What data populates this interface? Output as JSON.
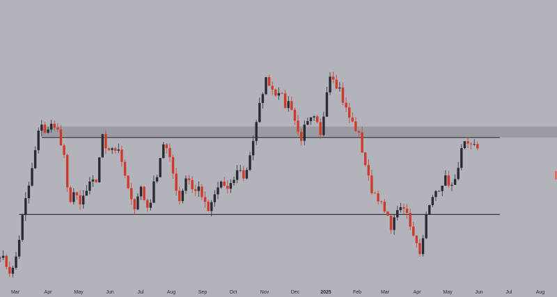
{
  "chart_data": {
    "type": "candlestick",
    "x_ticks": [
      "Mar",
      "Apr",
      "May",
      "Jun",
      "Jul",
      "Aug",
      "Sep",
      "Oct",
      "Nov",
      "Dec",
      "2025",
      "Feb",
      "Mar",
      "Apr",
      "May",
      "Jun",
      "Jul",
      "Aug"
    ],
    "x_ticks_bold": [
      10
    ],
    "y_axis_visible": false,
    "grid": false,
    "levels": {
      "resistance": 0.55,
      "support": 0.27,
      "supply_zone": [
        0.55,
        0.59
      ]
    },
    "close_path": [
      [
        0.0,
        0.13
      ],
      [
        0.5,
        0.1
      ],
      [
        1.0,
        0.08
      ],
      [
        1.5,
        0.05
      ],
      [
        2.0,
        0.1
      ],
      [
        2.5,
        0.18
      ],
      [
        3.0,
        0.27
      ],
      [
        3.5,
        0.34
      ],
      [
        4.0,
        0.4
      ],
      [
        4.5,
        0.48
      ],
      [
        5.0,
        0.56
      ],
      [
        5.5,
        0.61
      ],
      [
        6.0,
        0.56
      ],
      [
        6.5,
        0.58
      ],
      [
        7.0,
        0.61
      ],
      [
        7.5,
        0.58
      ],
      [
        8.0,
        0.52
      ],
      [
        8.5,
        0.46
      ],
      [
        9.0,
        0.3
      ],
      [
        9.5,
        0.36
      ],
      [
        10.0,
        0.33
      ],
      [
        10.5,
        0.3
      ],
      [
        11.0,
        0.34
      ],
      [
        11.5,
        0.36
      ],
      [
        12.0,
        0.39
      ],
      [
        12.5,
        0.37
      ],
      [
        13.0,
        0.48
      ],
      [
        13.5,
        0.56
      ],
      [
        14.0,
        0.5
      ],
      [
        14.5,
        0.53
      ],
      [
        15.0,
        0.5
      ],
      [
        15.5,
        0.52
      ],
      [
        16.0,
        0.44
      ],
      [
        16.5,
        0.4
      ],
      [
        17.0,
        0.33
      ],
      [
        17.5,
        0.29
      ],
      [
        18.0,
        0.34
      ],
      [
        18.5,
        0.37
      ],
      [
        19.0,
        0.31
      ],
      [
        19.5,
        0.29
      ],
      [
        20.0,
        0.36
      ],
      [
        20.5,
        0.41
      ],
      [
        21.0,
        0.48
      ],
      [
        21.5,
        0.54
      ],
      [
        22.0,
        0.49
      ],
      [
        22.5,
        0.44
      ],
      [
        23.0,
        0.38
      ],
      [
        23.5,
        0.32
      ],
      [
        24.0,
        0.37
      ],
      [
        24.5,
        0.42
      ],
      [
        25.0,
        0.38
      ],
      [
        25.5,
        0.35
      ],
      [
        26.0,
        0.37
      ],
      [
        26.5,
        0.34
      ],
      [
        27.0,
        0.29
      ],
      [
        27.5,
        0.28
      ],
      [
        28.0,
        0.33
      ],
      [
        28.5,
        0.36
      ],
      [
        29.0,
        0.39
      ],
      [
        29.5,
        0.37
      ],
      [
        30.0,
        0.35
      ],
      [
        30.5,
        0.39
      ],
      [
        31.0,
        0.42
      ],
      [
        31.5,
        0.44
      ],
      [
        32.0,
        0.39
      ],
      [
        32.5,
        0.46
      ],
      [
        33.0,
        0.52
      ],
      [
        33.5,
        0.58
      ],
      [
        34.0,
        0.66
      ],
      [
        34.5,
        0.73
      ],
      [
        35.0,
        0.77
      ],
      [
        35.5,
        0.74
      ],
      [
        36.0,
        0.71
      ],
      [
        36.5,
        0.73
      ],
      [
        37.0,
        0.69
      ],
      [
        37.5,
        0.66
      ],
      [
        38.0,
        0.69
      ],
      [
        38.5,
        0.63
      ],
      [
        39.0,
        0.57
      ],
      [
        39.5,
        0.55
      ],
      [
        40.0,
        0.59
      ],
      [
        40.5,
        0.6
      ],
      [
        41.0,
        0.62
      ],
      [
        41.5,
        0.6
      ],
      [
        42.0,
        0.55
      ],
      [
        42.5,
        0.65
      ],
      [
        43.0,
        0.77
      ],
      [
        43.5,
        0.79
      ],
      [
        44.0,
        0.75
      ],
      [
        44.5,
        0.73
      ],
      [
        45.0,
        0.68
      ],
      [
        45.5,
        0.64
      ],
      [
        46.0,
        0.61
      ],
      [
        46.5,
        0.59
      ],
      [
        47.0,
        0.56
      ],
      [
        47.5,
        0.5
      ],
      [
        48.0,
        0.44
      ],
      [
        48.5,
        0.37
      ],
      [
        49.0,
        0.35
      ],
      [
        49.5,
        0.34
      ],
      [
        50.0,
        0.3
      ],
      [
        50.5,
        0.27
      ],
      [
        51.0,
        0.24
      ],
      [
        51.5,
        0.22
      ],
      [
        52.0,
        0.3
      ],
      [
        52.5,
        0.28
      ],
      [
        53.0,
        0.29
      ],
      [
        53.5,
        0.26
      ],
      [
        54.0,
        0.21
      ],
      [
        54.5,
        0.19
      ],
      [
        55.0,
        0.12
      ],
      [
        55.5,
        0.21
      ],
      [
        56.0,
        0.28
      ],
      [
        56.5,
        0.31
      ],
      [
        57.0,
        0.35
      ],
      [
        57.5,
        0.37
      ],
      [
        58.0,
        0.39
      ],
      [
        58.5,
        0.4
      ],
      [
        59.0,
        0.38
      ],
      [
        59.5,
        0.36
      ],
      [
        60.0,
        0.45
      ],
      [
        60.5,
        0.5
      ],
      [
        61.0,
        0.53
      ],
      [
        61.5,
        0.5
      ],
      [
        62.0,
        0.52
      ],
      [
        62.5,
        0.51
      ],
      [
        63.0,
        0.53
      ]
    ],
    "x_range": [
      0,
      73.0
    ],
    "y_range": [
      0.0,
      1.0
    ]
  }
}
